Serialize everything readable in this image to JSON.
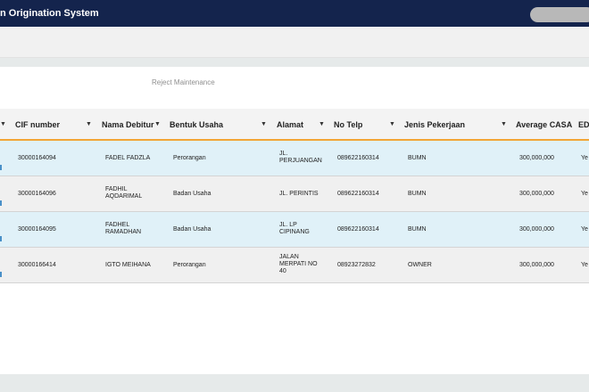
{
  "app": {
    "title": "n Origination System"
  },
  "page": {
    "subtitle": "Reject Maintenance"
  },
  "table": {
    "columns": [
      {
        "label": ""
      },
      {
        "label": "CIF number"
      },
      {
        "label": "Nama Debitur"
      },
      {
        "label": "Bentuk Usaha"
      },
      {
        "label": "Alamat"
      },
      {
        "label": "No Telp"
      },
      {
        "label": "Jenis Pekerjaan"
      },
      {
        "label": "Average CASA"
      },
      {
        "label": "ED"
      }
    ],
    "filter_icon": "▼",
    "rows": [
      {
        "cif": "30000164094",
        "nama": "FADEL FADZLA",
        "bentuk": "Perorangan",
        "alamat": "JL. PERJUANGAN",
        "telp": "089622160314",
        "jenis": "BUMN",
        "casa": "300,000,000",
        "ed": "Ye"
      },
      {
        "cif": "30000164096",
        "nama": "FADHIL AQDARIMAL",
        "bentuk": "Badan Usaha",
        "alamat": "JL. PERINTIS",
        "telp": "089622160314",
        "jenis": "BUMN",
        "casa": "300,000,000",
        "ed": "Ye"
      },
      {
        "cif": "30000164095",
        "nama": "FADHEL RAMADHAN",
        "bentuk": "Badan Usaha",
        "alamat": "JL. LP CIPINANG",
        "telp": "089622160314",
        "jenis": "BUMN",
        "casa": "300,000,000",
        "ed": "Ye"
      },
      {
        "cif": "30000166414",
        "nama": "IGTO MEIHANA",
        "bentuk": "Perorangan",
        "alamat": "JALAN MERPATI NO 40",
        "telp": "08923272832",
        "jenis": "OWNER",
        "casa": "300,000,000",
        "ed": "Ye"
      }
    ]
  },
  "colors": {
    "header_bg": "#14244d",
    "accent_underline": "#f2a536",
    "row_blue": "#e0f1f8",
    "row_grey": "#f0f0f0"
  }
}
